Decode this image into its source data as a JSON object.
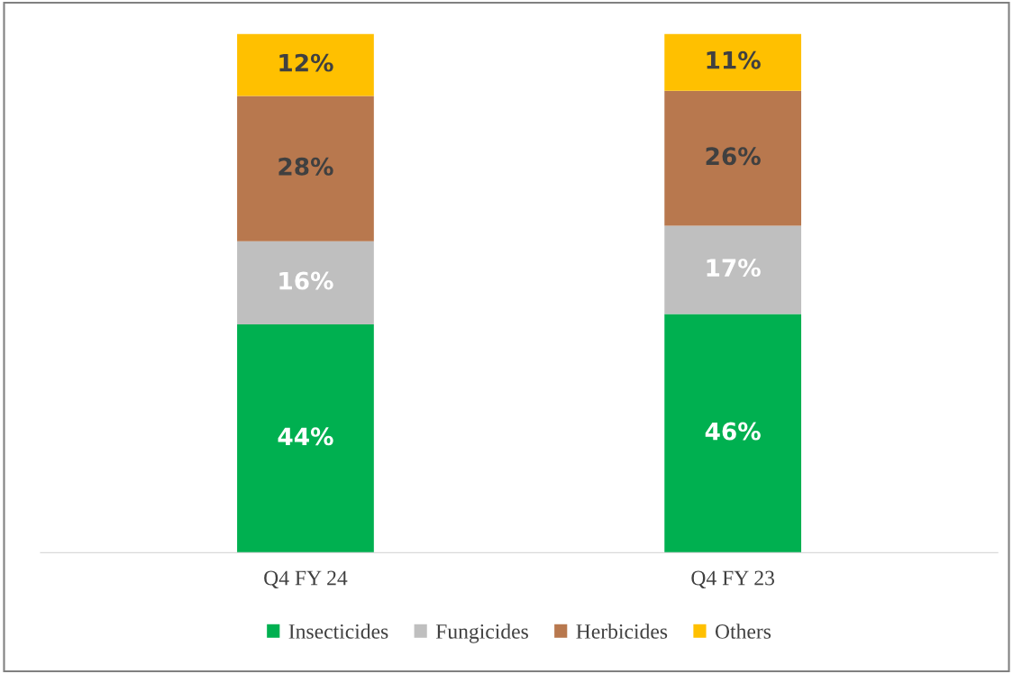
{
  "chart_data": {
    "type": "bar",
    "stacked": true,
    "categories": [
      "Q4 FY 24",
      "Q4 FY 23"
    ],
    "series": [
      {
        "name": "Insecticides",
        "color": "#00b050",
        "values": [
          44,
          46
        ],
        "value_labels": [
          "44%",
          "46%"
        ]
      },
      {
        "name": "Fungicides",
        "color": "#bfbfbf",
        "values": [
          16,
          17
        ],
        "value_labels": [
          "16%",
          "17%"
        ]
      },
      {
        "name": "Herbicides",
        "color": "#b8784e",
        "values": [
          28,
          26
        ],
        "value_labels": [
          "28%",
          "26%"
        ]
      },
      {
        "name": "Others",
        "color": "#ffc000",
        "values": [
          12,
          11
        ],
        "value_labels": [
          "12%",
          "11%"
        ]
      }
    ],
    "legend": "bottom",
    "grid": false
  }
}
